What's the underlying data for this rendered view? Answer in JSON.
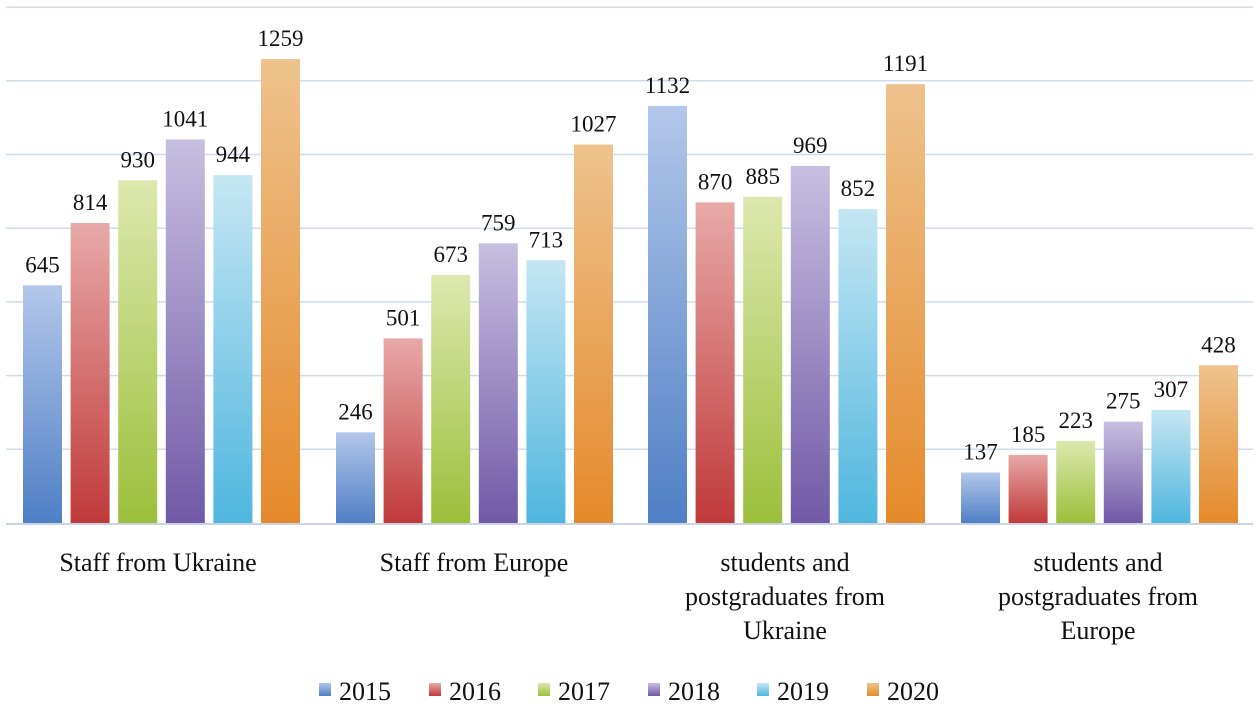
{
  "chart_data": {
    "type": "bar",
    "title": "",
    "xlabel": "",
    "ylabel": "",
    "ylim": [
      0,
      1400
    ],
    "grid": true,
    "legend_position": "bottom",
    "categories": [
      [
        "Staff  from Ukraine"
      ],
      [
        "Staff from Europe"
      ],
      [
        "students and",
        "postgraduates from",
        "Ukraine"
      ],
      [
        "students and",
        "postgraduates from",
        "Europe"
      ]
    ],
    "series": [
      {
        "name": "2015",
        "values": [
          645,
          246,
          1132,
          137
        ]
      },
      {
        "name": "2016",
        "values": [
          814,
          501,
          870,
          185
        ]
      },
      {
        "name": "2017",
        "values": [
          930,
          673,
          885,
          223
        ]
      },
      {
        "name": "2018",
        "values": [
          1041,
          759,
          969,
          275
        ]
      },
      {
        "name": "2019",
        "values": [
          944,
          713,
          852,
          307
        ]
      },
      {
        "name": "2020",
        "values": [
          1259,
          1027,
          1191,
          428
        ]
      }
    ],
    "colors": [
      {
        "light": "#b3c7ea",
        "dark": "#4f7fc6"
      },
      {
        "light": "#e8a9a8",
        "dark": "#c0393a"
      },
      {
        "light": "#dde8ae",
        "dark": "#9cbf3b"
      },
      {
        "light": "#c7bfe0",
        "dark": "#7159a7"
      },
      {
        "light": "#c5e6f3",
        "dark": "#4fb6de"
      },
      {
        "light": "#eec28d",
        "dark": "#e58a2b"
      }
    ],
    "gridline_color": "#cfdcec",
    "axis_color": "#c8d4e4"
  }
}
